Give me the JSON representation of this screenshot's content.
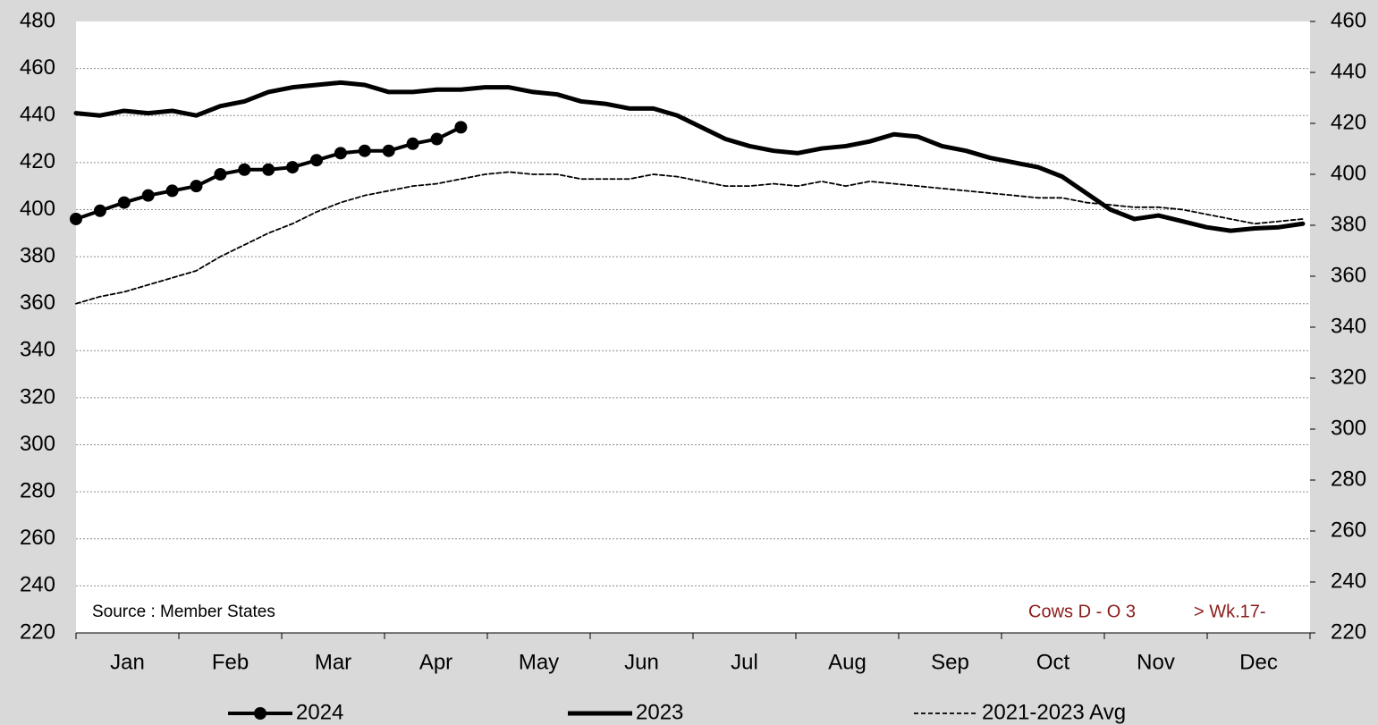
{
  "chart_data": {
    "type": "line",
    "x": [
      1,
      2,
      3,
      4,
      5,
      6,
      7,
      8,
      9,
      10,
      11,
      12,
      13,
      14,
      15,
      16,
      17,
      18,
      19,
      20,
      21,
      22,
      23,
      24,
      25,
      26,
      27,
      28,
      29,
      30,
      31,
      32,
      33,
      34,
      35,
      36,
      37,
      38,
      39,
      40,
      41,
      42,
      43,
      44,
      45,
      46,
      47,
      48,
      49,
      50,
      51,
      52
    ],
    "xlim": [
      1,
      52.3
    ],
    "months": [
      "Jan",
      "Feb",
      "Mar",
      "Apr",
      "May",
      "Jun",
      "Jul",
      "Aug",
      "Sep",
      "Oct",
      "Nov",
      "Dec"
    ],
    "ylim": [
      220,
      480
    ],
    "yticks": [
      220,
      240,
      260,
      280,
      300,
      320,
      340,
      360,
      380,
      400,
      420,
      440,
      460,
      480
    ],
    "y2lim": [
      220,
      460
    ],
    "y2ticks": [
      220,
      240,
      260,
      280,
      300,
      320,
      340,
      360,
      380,
      400,
      420,
      440,
      460
    ],
    "grid": true,
    "legend": "bottom",
    "series": [
      {
        "name": "2024",
        "color": "#000000",
        "marker": true,
        "dashed": false,
        "values": [
          396,
          399.5,
          403,
          406,
          408,
          410,
          415,
          417,
          417,
          418,
          421,
          424,
          425,
          425,
          428,
          430,
          435,
          null,
          null,
          null,
          null,
          null,
          null,
          null,
          null,
          null,
          null,
          null,
          null,
          null,
          null,
          null,
          null,
          null,
          null,
          null,
          null,
          null,
          null,
          null,
          null,
          null,
          null,
          null,
          null,
          null,
          null,
          null,
          null,
          null,
          null,
          null
        ]
      },
      {
        "name": "2023",
        "color": "#000000",
        "marker": false,
        "dashed": false,
        "values": [
          441,
          440,
          442,
          441,
          442,
          440,
          444,
          446,
          450,
          452,
          453,
          454,
          453,
          450,
          450,
          451,
          451,
          452,
          452,
          450,
          449,
          446,
          445,
          443,
          443,
          440,
          435,
          430,
          427,
          425,
          424,
          426,
          427,
          429,
          432,
          431,
          427,
          425,
          422,
          420,
          418,
          414,
          407,
          400,
          396,
          397.5,
          395,
          392.5,
          391,
          392,
          392.5,
          394
        ]
      },
      {
        "name": "2021-2023 Avg",
        "color": "#000000",
        "marker": false,
        "dashed": true,
        "values": [
          360,
          363,
          365,
          368,
          371,
          374,
          380,
          385,
          390,
          394,
          399,
          403,
          406,
          408,
          410,
          411,
          413,
          415,
          416,
          415,
          415,
          413,
          413,
          413,
          415,
          414,
          412,
          410,
          410,
          411,
          410,
          412,
          410,
          412,
          411,
          410,
          409,
          408,
          407,
          406,
          405,
          405,
          403,
          402,
          401,
          401,
          400,
          398,
          396,
          394,
          395,
          396
        ]
      }
    ],
    "annotations": [
      "Source : Member States",
      "Cows D - O 3",
      "> Wk.17-"
    ]
  }
}
